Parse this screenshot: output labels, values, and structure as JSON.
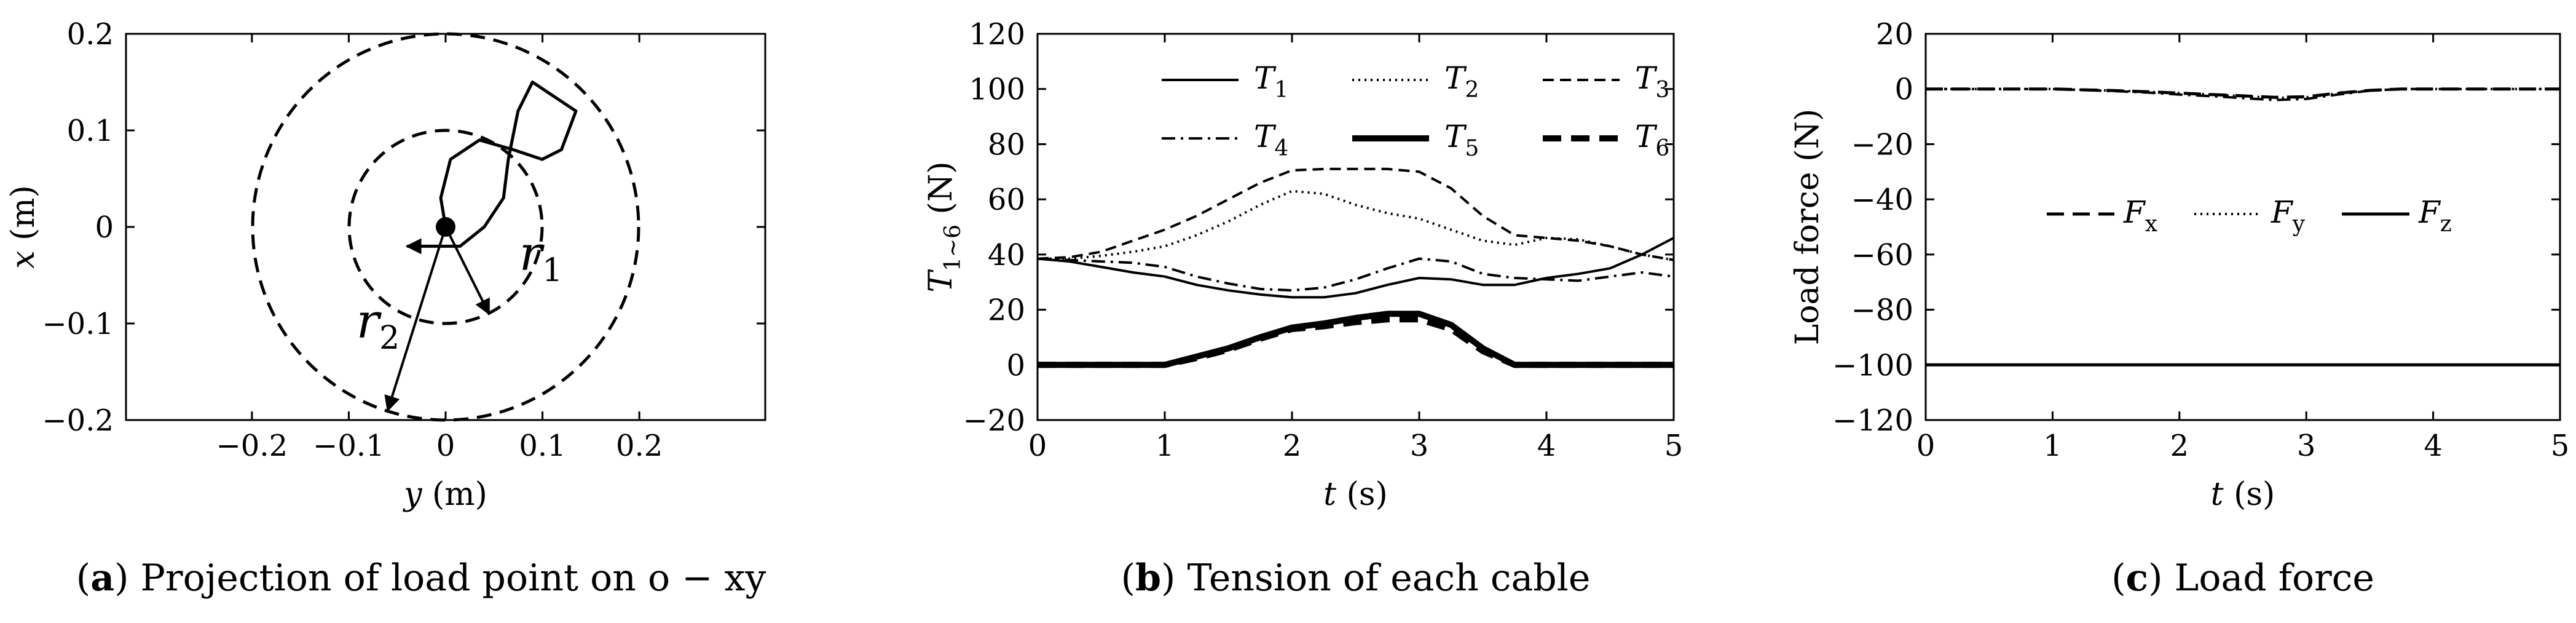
{
  "chart_data": [
    {
      "id": "a",
      "type": "line",
      "caption": {
        "letter": "a",
        "text": "Projection of load point on o − xy"
      },
      "xlabel": "y (m)",
      "ylabel": "x (m)",
      "xlim": [
        -0.33,
        0.33
      ],
      "ylim": [
        -0.2,
        0.2
      ],
      "xticks": [
        -0.2,
        -0.1,
        0,
        0.1,
        0.2
      ],
      "xtick_labels": [
        "−0.2",
        "−0.1",
        "0",
        "0.1",
        "0.2"
      ],
      "yticks": [
        0.2,
        0.1,
        0,
        -0.1,
        -0.2
      ],
      "ytick_labels": [
        "0.2",
        "0.1",
        "0",
        "−0.1",
        "−0.2"
      ],
      "grid": false,
      "circles": [
        {
          "cx": 0,
          "cy": 0,
          "r": 0.2,
          "style": "dashed"
        },
        {
          "cx": 0,
          "cy": 0,
          "r": 0.1,
          "style": "dashed"
        }
      ],
      "center_point": {
        "x": 0,
        "y": 0
      },
      "trajectory": {
        "x": [
          0,
          0.03,
          0.07,
          0.09,
          0.08,
          0.07,
          0.08,
          0.12,
          0.15,
          0.12,
          0.07,
          0.03,
          0.0,
          -0.02,
          -0.02
        ],
        "y": [
          0,
          -0.005,
          0.005,
          0.035,
          0.07,
          0.1,
          0.12,
          0.135,
          0.09,
          0.075,
          0.065,
          0.06,
          0.04,
          0.015,
          -0.04
        ]
      },
      "radii": [
        {
          "label": "r",
          "subscript": "1",
          "to": {
            "x": 0.045,
            "y": -0.09
          }
        },
        {
          "label": "r",
          "subscript": "2",
          "to": {
            "x": -0.06,
            "y": -0.19
          }
        }
      ]
    },
    {
      "id": "b",
      "type": "line",
      "caption": {
        "letter": "b",
        "text": "Tension of each cable"
      },
      "xlabel": "t (s)",
      "ylabel": {
        "base": "T",
        "subscript": "1~6",
        "unit": " (N)"
      },
      "xlim": [
        0,
        5
      ],
      "ylim": [
        -20,
        120
      ],
      "xticks": [
        0,
        1,
        2,
        3,
        4,
        5
      ],
      "xtick_labels": [
        "0",
        "1",
        "2",
        "3",
        "4",
        "5"
      ],
      "yticks": [
        120,
        100,
        80,
        60,
        40,
        20,
        0,
        -20
      ],
      "ytick_labels": [
        "120",
        "100",
        "80",
        "60",
        "40",
        "20",
        "0",
        "−20"
      ],
      "grid": false,
      "legend": "top",
      "x": [
        0,
        0.25,
        0.5,
        0.75,
        1,
        1.25,
        1.5,
        1.75,
        2,
        2.25,
        2.5,
        2.75,
        3,
        3.25,
        3.5,
        3.75,
        4,
        4.25,
        4.5,
        4.75,
        5
      ],
      "series": [
        {
          "name": "T",
          "sub": "1",
          "style": "solid-thin",
          "values": [
            38.5,
            37.5,
            35.5,
            33.5,
            32,
            29,
            27,
            25.5,
            24.5,
            24.5,
            26,
            29,
            31.5,
            31,
            29,
            29,
            31.5,
            33,
            35,
            40,
            46
          ]
        },
        {
          "name": "T",
          "sub": "2",
          "style": "dotted",
          "values": [
            38.5,
            38.5,
            39.5,
            41,
            43,
            47,
            52,
            58,
            63,
            62,
            58,
            55,
            53,
            49,
            45,
            43.5,
            46,
            45.5,
            43,
            40,
            38
          ]
        },
        {
          "name": "T",
          "sub": "3",
          "style": "dashed-thin",
          "values": [
            38.5,
            39,
            41,
            45,
            49,
            54,
            60,
            66,
            70.5,
            71,
            71,
            71,
            70,
            64,
            54,
            47,
            46,
            45,
            43,
            40,
            38
          ]
        },
        {
          "name": "T",
          "sub": "4",
          "style": "dashdot",
          "values": [
            38.5,
            38,
            37.5,
            37,
            35.5,
            32,
            29.5,
            27.5,
            27,
            28,
            31,
            35,
            38.5,
            37.5,
            33,
            31.5,
            31,
            30.5,
            32,
            33.5,
            32
          ]
        },
        {
          "name": "T",
          "sub": "5",
          "style": "solid-thick",
          "values": [
            0,
            0,
            0,
            0,
            0,
            3,
            6,
            10,
            13.5,
            15,
            17,
            18.5,
            18.5,
            14.5,
            6,
            0,
            0,
            0,
            0,
            0,
            0
          ]
        },
        {
          "name": "T",
          "sub": "6",
          "style": "dashed-thick",
          "values": [
            0,
            0,
            0,
            0,
            0,
            2.5,
            5.5,
            9.5,
            13,
            14,
            15.5,
            16.5,
            16.5,
            13,
            5,
            0,
            0,
            0,
            0,
            0,
            0
          ]
        }
      ]
    },
    {
      "id": "c",
      "type": "line",
      "caption": {
        "letter": "c",
        "text": "Load force"
      },
      "xlabel": "t (s)",
      "ylabel": "Load force (N)",
      "xlim": [
        0,
        5
      ],
      "ylim": [
        -120,
        20
      ],
      "xticks": [
        0,
        1,
        2,
        3,
        4,
        5
      ],
      "xtick_labels": [
        "0",
        "1",
        "2",
        "3",
        "4",
        "5"
      ],
      "yticks": [
        20,
        0,
        -20,
        -40,
        -60,
        -80,
        -100,
        -120
      ],
      "ytick_labels": [
        "20",
        "0",
        "−20",
        "−40",
        "−60",
        "−80",
        "−100",
        "−120"
      ],
      "grid": false,
      "legend": "center",
      "x": [
        0,
        0.25,
        0.5,
        0.75,
        1,
        1.25,
        1.5,
        1.75,
        2,
        2.25,
        2.5,
        2.75,
        3,
        3.25,
        3.5,
        3.75,
        4,
        4.25,
        4.5,
        4.75,
        5
      ],
      "series": [
        {
          "name": "F",
          "sub": "x",
          "style": "dashed",
          "values": [
            0,
            0,
            0,
            0,
            0,
            -0.3,
            -0.6,
            -1,
            -1.5,
            -2,
            -2.5,
            -3,
            -2.8,
            -1.5,
            -0.5,
            0,
            0,
            0,
            0,
            0,
            0
          ]
        },
        {
          "name": "F",
          "sub": "y",
          "style": "dotted",
          "values": [
            0,
            0,
            0,
            0,
            0,
            -0.3,
            -0.6,
            -1,
            -1.5,
            -2,
            -2.6,
            -3.2,
            -3,
            -1.6,
            -0.6,
            0,
            0,
            0,
            0,
            0,
            0
          ]
        },
        {
          "name": "F",
          "sub": "z",
          "style": "solid",
          "values": [
            -100,
            -100,
            -100,
            -100,
            -100,
            -100,
            -100,
            -100,
            -100,
            -100,
            -100,
            -100,
            -100,
            -100,
            -100,
            -100,
            -100,
            -100,
            -100,
            -100,
            -100
          ]
        },
        {
          "name": "",
          "sub": "",
          "style": "dashdot",
          "legend": false,
          "values": [
            0,
            0,
            0,
            0,
            0,
            -0.4,
            -0.8,
            -1.3,
            -2,
            -2.6,
            -3.3,
            -4,
            -3.6,
            -2,
            -0.6,
            0,
            0,
            0,
            0,
            0,
            0
          ]
        }
      ]
    }
  ]
}
